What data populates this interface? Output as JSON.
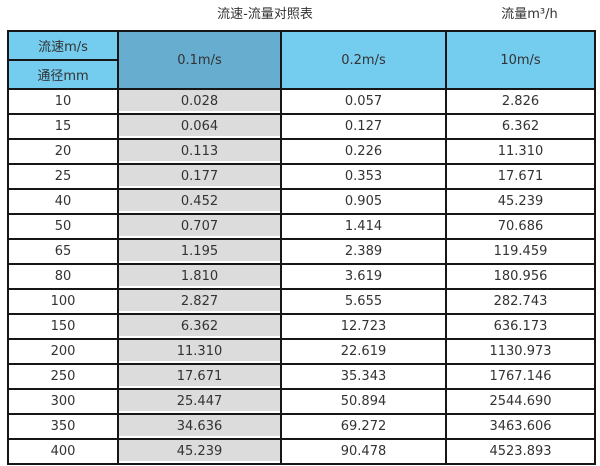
{
  "header": {
    "table_title": "流速-流量对照表",
    "unit_title": "流量m³/h"
  },
  "table": {
    "corner_top_label": "流速m/s",
    "corner_bottom_label": "通径mm",
    "velocity_headers": [
      "0.1m/s",
      "0.2m/s",
      "10m/s"
    ],
    "rows": [
      {
        "diameter": "10",
        "flows": [
          "0.028",
          "0.057",
          "2.826"
        ]
      },
      {
        "diameter": "15",
        "flows": [
          "0.064",
          "0.127",
          "6.362"
        ]
      },
      {
        "diameter": "20",
        "flows": [
          "0.113",
          "0.226",
          "11.310"
        ]
      },
      {
        "diameter": "25",
        "flows": [
          "0.177",
          "0.353",
          "17.671"
        ]
      },
      {
        "diameter": "40",
        "flows": [
          "0.452",
          "0.905",
          "45.239"
        ]
      },
      {
        "diameter": "50",
        "flows": [
          "0.707",
          "1.414",
          "70.686"
        ]
      },
      {
        "diameter": "65",
        "flows": [
          "1.195",
          "2.389",
          "119.459"
        ]
      },
      {
        "diameter": "80",
        "flows": [
          "1.810",
          "3.619",
          "180.956"
        ]
      },
      {
        "diameter": "100",
        "flows": [
          "2.827",
          "5.655",
          "282.743"
        ]
      },
      {
        "diameter": "150",
        "flows": [
          "6.362",
          "12.723",
          "636.173"
        ]
      },
      {
        "diameter": "200",
        "flows": [
          "11.310",
          "22.619",
          "1130.973"
        ]
      },
      {
        "diameter": "250",
        "flows": [
          "17.671",
          "35.343",
          "1767.146"
        ]
      },
      {
        "diameter": "300",
        "flows": [
          "25.447",
          "50.894",
          "2544.690"
        ]
      },
      {
        "diameter": "350",
        "flows": [
          "34.636",
          "69.272",
          "3463.606"
        ]
      },
      {
        "diameter": "400",
        "flows": [
          "45.239",
          "90.478",
          "4523.893"
        ]
      }
    ]
  },
  "colors": {
    "header_light_blue": "#74CCEE",
    "header_dark_blue": "#67ADD0",
    "highlight_column_gray": "#DCDCDC",
    "border_black": "#161616"
  },
  "chart_data": {
    "type": "table",
    "title": "流速-流量对照表",
    "unit_label": "流量m³/h",
    "row_header_label": "通径mm",
    "column_header_label": "流速m/s",
    "columns": [
      "0.1m/s",
      "0.2m/s",
      "10m/s"
    ],
    "diameters_mm": [
      10,
      15,
      20,
      25,
      40,
      50,
      65,
      80,
      100,
      150,
      200,
      250,
      300,
      350,
      400
    ],
    "series": [
      {
        "name": "0.1m/s",
        "values": [
          0.028,
          0.064,
          0.113,
          0.177,
          0.452,
          0.707,
          1.195,
          1.81,
          2.827,
          6.362,
          11.31,
          17.671,
          25.447,
          34.636,
          45.239
        ]
      },
      {
        "name": "0.2m/s",
        "values": [
          0.057,
          0.127,
          0.226,
          0.353,
          0.905,
          1.414,
          2.389,
          3.619,
          5.655,
          12.723,
          22.619,
          35.343,
          50.894,
          69.272,
          90.478
        ]
      },
      {
        "name": "10m/s",
        "values": [
          2.826,
          6.362,
          11.31,
          17.671,
          45.239,
          70.686,
          119.459,
          180.956,
          282.743,
          636.173,
          1130.973,
          1767.146,
          2544.69,
          3463.606,
          4523.893
        ]
      }
    ]
  }
}
